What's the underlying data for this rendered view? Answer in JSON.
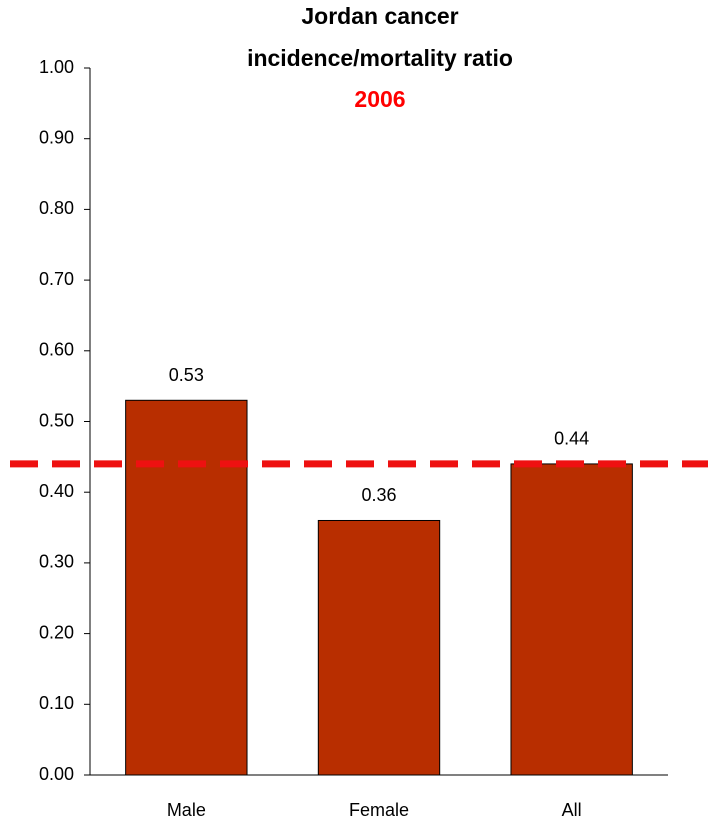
{
  "chart_data": {
    "type": "bar",
    "title_lines": [
      "Jordan cancer",
      "incidence/mortality ratio"
    ],
    "subtitle": "2006",
    "subtitle_color": "#ff0000",
    "categories": [
      "Male",
      "Female",
      "All"
    ],
    "values": [
      0.53,
      0.36,
      0.44
    ],
    "color": "#b82e00",
    "ylim": [
      0,
      1
    ],
    "yticks": [
      {
        "value": 0,
        "label": "0.00"
      },
      {
        "value": 0.1,
        "label": "0.10"
      },
      {
        "value": 0.2,
        "label": "0.20"
      },
      {
        "value": 0.3,
        "label": "0.30"
      },
      {
        "value": 0.4,
        "label": "0.40"
      },
      {
        "value": 0.5,
        "label": "0.50"
      },
      {
        "value": 0.6,
        "label": "0.60"
      },
      {
        "value": 0.7,
        "label": "0.70"
      },
      {
        "value": 0.8,
        "label": "0.80"
      },
      {
        "value": 0.9,
        "label": "0.90"
      },
      {
        "value": 1,
        "label": "1.00"
      }
    ],
    "grid": false,
    "reference_line": {
      "value": 0.44,
      "color": "#ee1111",
      "dashed": true
    }
  }
}
